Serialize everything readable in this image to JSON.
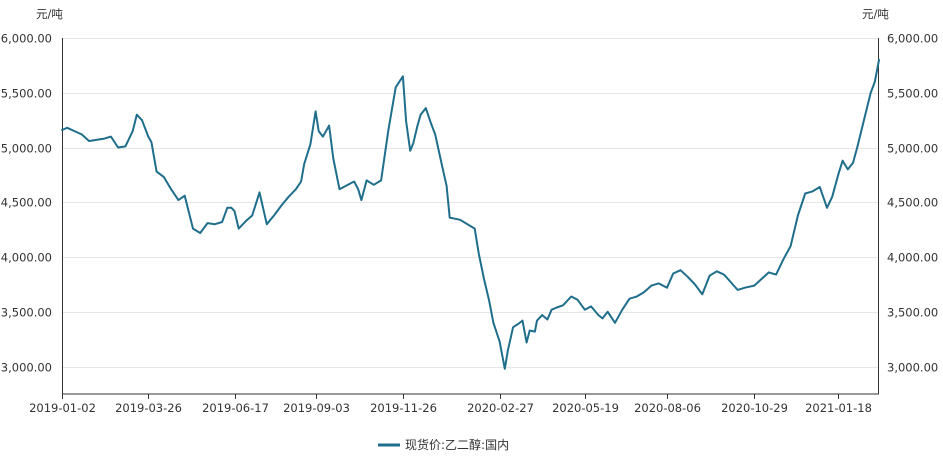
{
  "chart_data": {
    "type": "line",
    "unit_left": "元/吨",
    "unit_right": "元/吨",
    "ylim": [
      2750,
      6000
    ],
    "y_ticks": [
      3000,
      3500,
      4000,
      4500,
      5000,
      5500,
      6000
    ],
    "y_tick_labels": [
      "3,000.00",
      "3,500.00",
      "4,000.00",
      "4,500.00",
      "5,000.00",
      "5,500.00",
      "6,000.00"
    ],
    "x_range": [
      "2019-01-02",
      "2021-02-26"
    ],
    "x_tick_labels": [
      "2019-01-02",
      "2019-03-26",
      "2019-06-17",
      "2019-09-03",
      "2019-11-26",
      "2020-02-27",
      "2020-05-19",
      "2020-08-06",
      "2020-10-29",
      "2021-01-18"
    ],
    "legend_position": "bottom-center",
    "grid": true,
    "series": [
      {
        "name": "现货价:乙二醇:国内",
        "color": "#1f6e8c",
        "x": [
          "2019-01-02",
          "2019-01-07",
          "2019-01-14",
          "2019-01-21",
          "2019-01-28",
          "2019-02-11",
          "2019-02-18",
          "2019-02-25",
          "2019-03-04",
          "2019-03-11",
          "2019-03-15",
          "2019-03-20",
          "2019-03-26",
          "2019-03-29",
          "2019-04-03",
          "2019-04-10",
          "2019-04-17",
          "2019-04-24",
          "2019-04-30",
          "2019-05-08",
          "2019-05-15",
          "2019-05-22",
          "2019-05-29",
          "2019-06-05",
          "2019-06-10",
          "2019-06-14",
          "2019-06-17",
          "2019-06-21",
          "2019-06-28",
          "2019-07-04",
          "2019-07-11",
          "2019-07-18",
          "2019-07-25",
          "2019-08-01",
          "2019-08-08",
          "2019-08-15",
          "2019-08-20",
          "2019-08-23",
          "2019-08-29",
          "2019-09-03",
          "2019-09-06",
          "2019-09-10",
          "2019-09-16",
          "2019-09-20",
          "2019-09-26",
          "2019-10-10",
          "2019-10-14",
          "2019-10-17",
          "2019-10-22",
          "2019-10-29",
          "2019-11-05",
          "2019-11-12",
          "2019-11-19",
          "2019-11-26",
          "2019-11-29",
          "2019-12-03",
          "2019-12-06",
          "2019-12-10",
          "2019-12-13",
          "2019-12-18",
          "2019-12-23",
          "2019-12-27",
          "2020-01-03",
          "2020-01-07",
          "2020-01-10",
          "2020-01-15",
          "2020-01-20",
          "2020-02-03",
          "2020-02-07",
          "2020-02-12",
          "2020-02-17",
          "2020-02-21",
          "2020-02-27",
          "2020-03-03",
          "2020-03-06",
          "2020-03-11",
          "2020-03-16",
          "2020-03-20",
          "2020-03-24",
          "2020-03-27",
          "2020-04-01",
          "2020-04-03",
          "2020-04-08",
          "2020-04-13",
          "2020-04-17",
          "2020-04-22",
          "2020-04-28",
          "2020-05-06",
          "2020-05-12",
          "2020-05-19",
          "2020-05-25",
          "2020-06-01",
          "2020-06-05",
          "2020-06-10",
          "2020-06-17",
          "2020-06-24",
          "2020-07-01",
          "2020-07-08",
          "2020-07-15",
          "2020-07-22",
          "2020-07-29",
          "2020-08-06",
          "2020-08-12",
          "2020-08-19",
          "2020-08-26",
          "2020-09-02",
          "2020-09-09",
          "2020-09-16",
          "2020-09-23",
          "2020-09-30",
          "2020-10-13",
          "2020-10-20",
          "2020-10-29",
          "2020-11-05",
          "2020-11-12",
          "2020-11-19",
          "2020-11-26",
          "2020-12-03",
          "2020-12-10",
          "2020-12-17",
          "2020-12-24",
          "2020-12-31",
          "2021-01-07",
          "2021-01-12",
          "2021-01-18",
          "2021-01-22",
          "2021-01-27",
          "2021-02-01",
          "2021-02-05",
          "2021-02-18",
          "2021-02-22",
          "2021-02-26"
        ],
        "values": [
          5160,
          5180,
          5150,
          5120,
          5060,
          5080,
          5100,
          5000,
          5010,
          5150,
          5300,
          5250,
          5100,
          5050,
          4780,
          4730,
          4620,
          4520,
          4560,
          4260,
          4220,
          4310,
          4300,
          4320,
          4450,
          4450,
          4420,
          4260,
          4330,
          4380,
          4590,
          4300,
          4380,
          4470,
          4550,
          4620,
          4690,
          4850,
          5030,
          5330,
          5150,
          5100,
          5200,
          4900,
          4620,
          4690,
          4620,
          4520,
          4700,
          4660,
          4700,
          5160,
          5550,
          5650,
          5240,
          4970,
          5040,
          5200,
          5300,
          5360,
          5220,
          5120,
          4820,
          4650,
          4360,
          4350,
          4340,
          4260,
          4030,
          3800,
          3600,
          3400,
          3230,
          2980,
          3150,
          3360,
          3390,
          3420,
          3220,
          3330,
          3320,
          3420,
          3470,
          3430,
          3520,
          3540,
          3560,
          3640,
          3610,
          3520,
          3550,
          3470,
          3440,
          3500,
          3400,
          3520,
          3620,
          3640,
          3680,
          3740,
          3760,
          3720,
          3850,
          3880,
          3820,
          3750,
          3660,
          3830,
          3870,
          3840,
          3700,
          3720,
          3740,
          3800,
          3860,
          3840,
          3980,
          4100,
          4380,
          4580,
          4600,
          4640,
          4450,
          4550,
          4760,
          4880,
          4800,
          4860,
          5000,
          5500,
          5600,
          5800
        ]
      }
    ]
  }
}
